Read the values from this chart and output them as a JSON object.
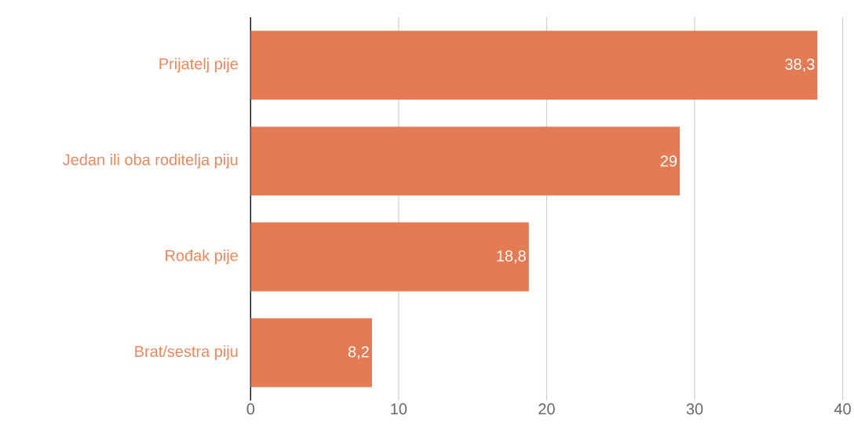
{
  "chart_data": {
    "type": "bar",
    "orientation": "horizontal",
    "categories": [
      "Prijatelj pije",
      "Jedan ili oba roditelja piju",
      "Rođak pije",
      "Brat/sestra piju"
    ],
    "values": [
      38.3,
      29,
      18.8,
      8.2
    ],
    "value_labels": [
      "38,3",
      "29",
      "18,8",
      "8,2"
    ],
    "color": "#e57b55",
    "xlim": [
      0,
      40
    ],
    "xticks": [
      0,
      10,
      20,
      30,
      40
    ],
    "grid": "x"
  }
}
